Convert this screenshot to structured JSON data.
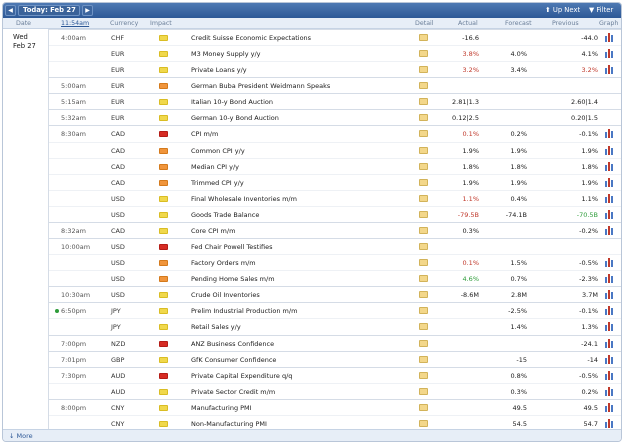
{
  "header": {
    "prev": "◀",
    "date_label": "Today: Feb 27",
    "next": "▶",
    "up_next": "⬆ Up Next",
    "filter": "▼ Filter"
  },
  "columns": {
    "date": "Date",
    "time": "11:54am",
    "currency": "Currency",
    "impact": "Impact",
    "detail": "Detail",
    "actual": "Actual",
    "forecast": "Forecast",
    "previous": "Previous",
    "graph": "Graph"
  },
  "date_group": {
    "day": "Wed",
    "date": "Feb 27"
  },
  "rows": [
    {
      "time": "4:00am",
      "cur": "CHF",
      "imp": "low",
      "ev": "Credit Suisse Economic Expectations",
      "act": "-16.6",
      "act_c": "",
      "fc": "",
      "pr": "-44.0",
      "pr_c": "",
      "g": true
    },
    {
      "time": "",
      "cur": "EUR",
      "imp": "low",
      "ev": "M3 Money Supply y/y",
      "act": "3.8%",
      "act_c": "bad",
      "fc": "4.0%",
      "pr": "4.1%",
      "pr_c": "",
      "g": true
    },
    {
      "time": "",
      "cur": "EUR",
      "imp": "low",
      "ev": "Private Loans y/y",
      "act": "3.2%",
      "act_c": "bad",
      "fc": "3.4%",
      "pr": "3.2%",
      "pr_c": "bad",
      "g": true
    },
    {
      "time": "5:00am",
      "cur": "EUR",
      "imp": "med",
      "ev": "German Buba President Weidmann Speaks",
      "act": "",
      "act_c": "",
      "fc": "",
      "pr": "",
      "pr_c": "",
      "g": false
    },
    {
      "time": "5:15am",
      "cur": "EUR",
      "imp": "low",
      "ev": "Italian 10-y Bond Auction",
      "act": "2.81|1.3",
      "act_c": "",
      "fc": "",
      "pr": "2.60|1.4",
      "pr_c": "",
      "g": false
    },
    {
      "time": "5:32am",
      "cur": "EUR",
      "imp": "low",
      "ev": "German 10-y Bond Auction",
      "act": "0.12|2.5",
      "act_c": "",
      "fc": "",
      "pr": "0.20|1.5",
      "pr_c": "",
      "g": false
    },
    {
      "time": "8:30am",
      "cur": "CAD",
      "imp": "high",
      "ev": "CPI m/m",
      "act": "0.1%",
      "act_c": "bad",
      "fc": "0.2%",
      "pr": "-0.1%",
      "pr_c": "",
      "g": true
    },
    {
      "time": "",
      "cur": "CAD",
      "imp": "med",
      "ev": "Common CPI y/y",
      "act": "1.9%",
      "act_c": "",
      "fc": "1.9%",
      "pr": "1.9%",
      "pr_c": "",
      "g": true
    },
    {
      "time": "",
      "cur": "CAD",
      "imp": "med",
      "ev": "Median CPI y/y",
      "act": "1.8%",
      "act_c": "",
      "fc": "1.8%",
      "pr": "1.8%",
      "pr_c": "",
      "g": true
    },
    {
      "time": "",
      "cur": "CAD",
      "imp": "med",
      "ev": "Trimmed CPI y/y",
      "act": "1.9%",
      "act_c": "",
      "fc": "1.9%",
      "pr": "1.9%",
      "pr_c": "",
      "g": true
    },
    {
      "time": "",
      "cur": "USD",
      "imp": "low",
      "ev": "Final Wholesale Inventories m/m",
      "act": "1.1%",
      "act_c": "bad",
      "fc": "0.4%",
      "pr": "1.1%",
      "pr_c": "",
      "g": true
    },
    {
      "time": "",
      "cur": "USD",
      "imp": "low",
      "ev": "Goods Trade Balance",
      "act": "-79.5B",
      "act_c": "bad",
      "fc": "-74.1B",
      "pr": "-70.5B",
      "pr_c": "good",
      "g": true
    },
    {
      "time": "8:32am",
      "cur": "CAD",
      "imp": "low",
      "ev": "Core CPI m/m",
      "act": "0.3%",
      "act_c": "",
      "fc": "",
      "pr": "-0.2%",
      "pr_c": "",
      "g": true
    },
    {
      "time": "10:00am",
      "cur": "USD",
      "imp": "high",
      "ev": "Fed Chair Powell Testifies",
      "act": "",
      "act_c": "",
      "fc": "",
      "pr": "",
      "pr_c": "",
      "g": false
    },
    {
      "time": "",
      "cur": "USD",
      "imp": "med",
      "ev": "Factory Orders m/m",
      "act": "0.1%",
      "act_c": "bad",
      "fc": "1.5%",
      "pr": "-0.5%",
      "pr_c": "",
      "g": true
    },
    {
      "time": "",
      "cur": "USD",
      "imp": "med",
      "ev": "Pending Home Sales m/m",
      "act": "4.6%",
      "act_c": "good",
      "fc": "0.7%",
      "pr": "-2.3%",
      "pr_c": "",
      "g": true
    },
    {
      "time": "10:30am",
      "cur": "USD",
      "imp": "low",
      "ev": "Crude Oil Inventories",
      "act": "-8.6M",
      "act_c": "",
      "fc": "2.8M",
      "pr": "3.7M",
      "pr_c": "",
      "g": true
    },
    {
      "time": "6:50pm",
      "cur": "JPY",
      "imp": "low",
      "ev": "Prelim Industrial Production m/m",
      "act": "",
      "act_c": "",
      "fc": "-2.5%",
      "pr": "-0.1%",
      "pr_c": "",
      "g": true
    },
    {
      "time": "",
      "cur": "JPY",
      "imp": "low",
      "ev": "Retail Sales y/y",
      "act": "",
      "act_c": "",
      "fc": "1.4%",
      "pr": "1.3%",
      "pr_c": "",
      "g": true
    },
    {
      "time": "7:00pm",
      "cur": "NZD",
      "imp": "high",
      "ev": "ANZ Business Confidence",
      "act": "",
      "act_c": "",
      "fc": "",
      "pr": "-24.1",
      "pr_c": "",
      "g": true
    },
    {
      "time": "7:01pm",
      "cur": "GBP",
      "imp": "low",
      "ev": "GfK Consumer Confidence",
      "act": "",
      "act_c": "",
      "fc": "-15",
      "pr": "-14",
      "pr_c": "",
      "g": true
    },
    {
      "time": "7:30pm",
      "cur": "AUD",
      "imp": "high",
      "ev": "Private Capital Expenditure q/q",
      "act": "",
      "act_c": "",
      "fc": "0.8%",
      "pr": "-0.5%",
      "pr_c": "",
      "g": true
    },
    {
      "time": "",
      "cur": "AUD",
      "imp": "low",
      "ev": "Private Sector Credit m/m",
      "act": "",
      "act_c": "",
      "fc": "0.3%",
      "pr": "0.2%",
      "pr_c": "",
      "g": true
    },
    {
      "time": "8:00pm",
      "cur": "CNY",
      "imp": "low",
      "ev": "Manufacturing PMI",
      "act": "",
      "act_c": "",
      "fc": "49.5",
      "pr": "49.5",
      "pr_c": "",
      "g": true
    },
    {
      "time": "",
      "cur": "CNY",
      "imp": "low",
      "ev": "Non-Manufacturing PMI",
      "act": "",
      "act_c": "",
      "fc": "54.5",
      "pr": "54.7",
      "pr_c": "",
      "g": true
    }
  ],
  "footer": {
    "more": "↓ More"
  }
}
